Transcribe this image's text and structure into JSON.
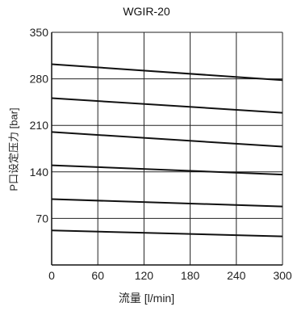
{
  "chart_data": {
    "type": "line",
    "title": "WGIR-20",
    "xlabel": "流量 [l/min]",
    "ylabel": "P口设定压力 [bar]",
    "xlim": [
      0,
      300
    ],
    "ylim": [
      0,
      350
    ],
    "xticks": [
      0,
      60,
      120,
      180,
      240,
      300
    ],
    "yticks": [
      70,
      140,
      210,
      280,
      350
    ],
    "grid": true,
    "series": [
      {
        "x": [
          0,
          300
        ],
        "y": [
          302,
          278
        ]
      },
      {
        "x": [
          0,
          300
        ],
        "y": [
          251,
          229
        ]
      },
      {
        "x": [
          0,
          300
        ],
        "y": [
          200,
          178
        ]
      },
      {
        "x": [
          0,
          300
        ],
        "y": [
          150,
          136
        ]
      },
      {
        "x": [
          0,
          300
        ],
        "y": [
          99,
          88
        ]
      },
      {
        "x": [
          0,
          300
        ],
        "y": [
          52,
          43
        ]
      }
    ]
  }
}
